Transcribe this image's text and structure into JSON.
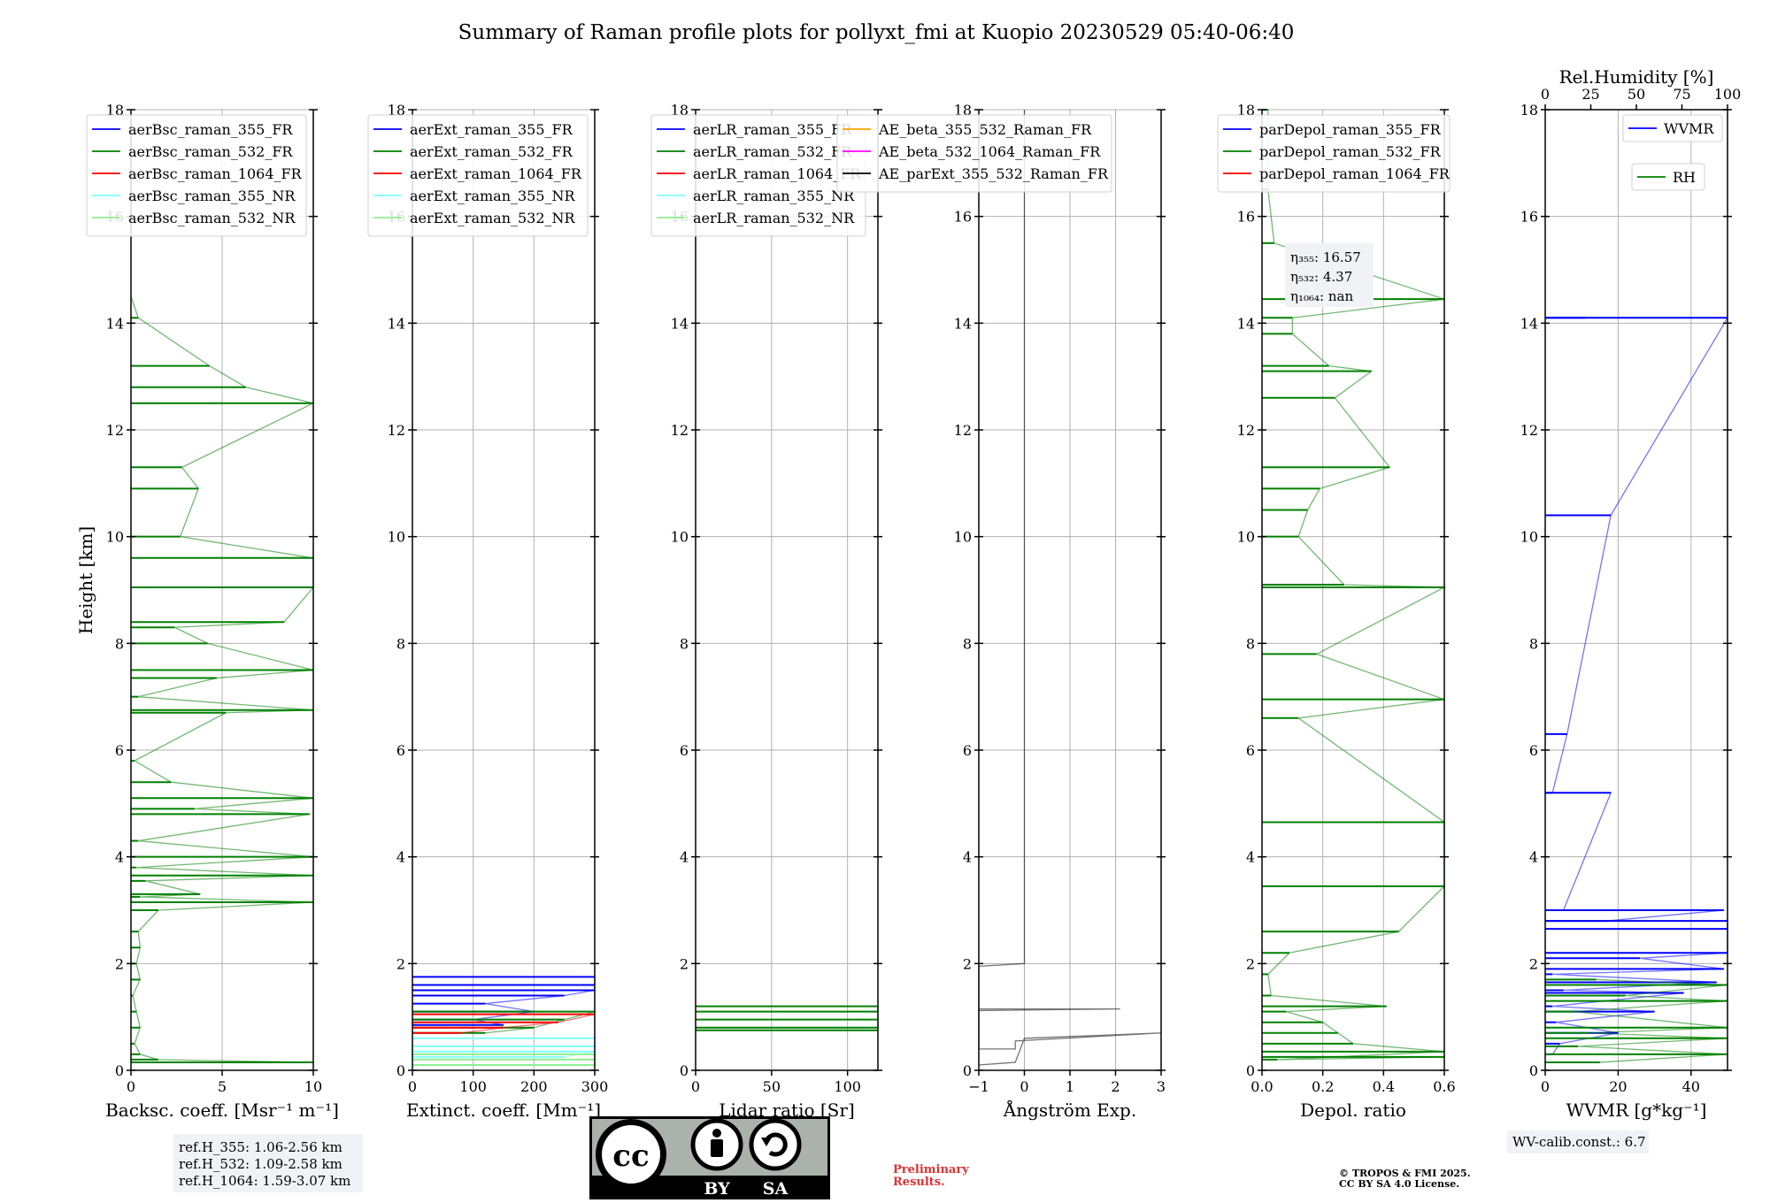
{
  "title": "Summary of Raman profile plots for pollyxt_fmi at Kuopio 20230529 05:40-06:40",
  "shared_ylabel": "Height [km]",
  "ref_box": [
    "ref.H_355: 1.06-2.56 km",
    "ref.H_532: 1.09-2.58 km",
    "ref.H_1064: 1.59-3.07 km"
  ],
  "eta_box": [
    "η₃₅₅: 16.57",
    "η₅₃₂: 4.37",
    "η₁₀₆₄: nan"
  ],
  "wv_box": "WV-calib.const.: 6.7",
  "license": {
    "badge_cc": "cc",
    "badge_by": "BY",
    "badge_sa": "SA",
    "preliminary": [
      "Preliminary",
      "Results."
    ],
    "copyright": [
      "© TROPOS & FMI 2025.",
      "CC BY SA 4.0 License."
    ]
  },
  "colors": {
    "blue": "#0000ff",
    "green": "#008000",
    "red": "#ff0000",
    "cyan": "#7fffff",
    "lightgreen": "#90ee90",
    "orange": "#ffa500",
    "magenta": "#ff00ff",
    "black": "#000000",
    "grid": "#b0b0b0"
  },
  "chart_data": [
    {
      "type": "line",
      "xlabel": "Backsc. coeff. [Msr⁻¹ m⁻¹]",
      "ylabel": "Height [km]",
      "xlim": [
        0,
        10
      ],
      "ylim": [
        0,
        18
      ],
      "xticks": [
        0,
        5,
        10
      ],
      "xtick_labels": [
        "0",
        "5",
        "10"
      ],
      "yticks": [
        0,
        2,
        4,
        6,
        8,
        10,
        12,
        14,
        16,
        18
      ],
      "grid": true,
      "legend": {
        "location": "upper-left",
        "entries": [
          {
            "name": "aerBsc_raman_355_FR",
            "color": "#0000ff"
          },
          {
            "name": "aerBsc_raman_532_FR",
            "color": "#008000"
          },
          {
            "name": "aerBsc_raman_1064_FR",
            "color": "#ff0000"
          },
          {
            "name": "aerBsc_raman_355_NR",
            "color": "#7fffff"
          },
          {
            "name": "aerBsc_raman_532_NR",
            "color": "#90ee90"
          }
        ]
      },
      "series": [
        {
          "name": "aerBsc_raman_532_FR",
          "color": "#008000",
          "values": [
            [
              10,
              0.15
            ],
            [
              1.5,
              0.2
            ],
            [
              0.5,
              0.3
            ],
            [
              0.2,
              0.5
            ],
            [
              0.5,
              0.8
            ],
            [
              0.3,
              1.1
            ],
            [
              0.1,
              1.4
            ],
            [
              0.5,
              1.7
            ],
            [
              0.3,
              2.0
            ],
            [
              0.5,
              2.3
            ],
            [
              0.4,
              2.6
            ],
            [
              1.5,
              3.0
            ],
            [
              10,
              3.15
            ],
            [
              0.5,
              3.25
            ],
            [
              3.8,
              3.3
            ],
            [
              0.8,
              3.55
            ],
            [
              10,
              3.65
            ],
            [
              0.3,
              3.8
            ],
            [
              10,
              4.0
            ],
            [
              0.4,
              4.3
            ],
            [
              9.8,
              4.8
            ],
            [
              3.5,
              4.9
            ],
            [
              10,
              5.1
            ],
            [
              2.2,
              5.4
            ],
            [
              0.2,
              5.8
            ],
            [
              5.2,
              6.7
            ],
            [
              10,
              6.75
            ],
            [
              0.4,
              7.0
            ],
            [
              4.7,
              7.35
            ],
            [
              10,
              7.5
            ],
            [
              4.2,
              8.0
            ],
            [
              2.4,
              8.3
            ],
            [
              8.4,
              8.4
            ],
            [
              10,
              9.05
            ],
            [
              10,
              9.6
            ],
            [
              2.7,
              10.0
            ],
            [
              3.7,
              10.9
            ],
            [
              2.8,
              11.3
            ],
            [
              10,
              12.5
            ],
            [
              6.3,
              12.8
            ],
            [
              4.3,
              13.2
            ],
            [
              0.4,
              14.1
            ],
            [
              0,
              14.5
            ]
          ]
        }
      ]
    },
    {
      "type": "line",
      "xlabel": "Extinct. coeff. [Mm⁻¹]",
      "xlim": [
        0,
        300
      ],
      "ylim": [
        0,
        18
      ],
      "xticks": [
        0,
        100,
        200,
        300
      ],
      "xtick_labels": [
        "0",
        "100",
        "200",
        "300"
      ],
      "yticks": [
        0,
        2,
        4,
        6,
        8,
        10,
        12,
        14,
        16,
        18
      ],
      "grid": true,
      "legend": {
        "location": "upper-left",
        "entries": [
          {
            "name": "aerExt_raman_355_FR",
            "color": "#0000ff"
          },
          {
            "name": "aerExt_raman_532_FR",
            "color": "#008000"
          },
          {
            "name": "aerExt_raman_1064_FR",
            "color": "#ff0000"
          },
          {
            "name": "aerExt_raman_355_NR",
            "color": "#7fffff"
          },
          {
            "name": "aerExt_raman_532_NR",
            "color": "#90ee90"
          }
        ]
      },
      "series": [
        {
          "name": "aerExt_raman_355_FR",
          "color": "#0000ff",
          "values": [
            [
              300,
              1.75
            ],
            [
              300,
              1.6
            ],
            [
              300,
              1.5
            ],
            [
              250,
              1.4
            ],
            [
              120,
              1.25
            ],
            [
              200,
              1.1
            ],
            [
              100,
              0.95
            ],
            [
              150,
              0.85
            ]
          ]
        },
        {
          "name": "aerExt_raman_532_FR",
          "color": "#008000",
          "values": [
            [
              300,
              1.1
            ],
            [
              250,
              0.95
            ],
            [
              200,
              0.8
            ],
            [
              120,
              0.7
            ]
          ]
        },
        {
          "name": "aerExt_raman_1064_FR",
          "color": "#ff0000",
          "values": [
            [
              300,
              1.05
            ],
            [
              240,
              0.9
            ],
            [
              150,
              0.8
            ],
            [
              80,
              0.7
            ]
          ]
        },
        {
          "name": "aerExt_raman_355_NR",
          "color": "#7fffff",
          "values": [
            [
              300,
              0.6
            ],
            [
              300,
              0.45
            ],
            [
              300,
              0.35
            ],
            [
              250,
              0.25
            ]
          ]
        },
        {
          "name": "aerExt_raman_532_NR",
          "color": "#90ee90",
          "values": [
            [
              300,
              0.3
            ],
            [
              300,
              0.2
            ],
            [
              300,
              0.1
            ]
          ]
        }
      ]
    },
    {
      "type": "line",
      "xlabel": "Lidar ratio [Sr]",
      "xlim": [
        0,
        120
      ],
      "ylim": [
        0,
        18
      ],
      "xticks": [
        0,
        50,
        100
      ],
      "xtick_labels": [
        "0",
        "50",
        "100"
      ],
      "yticks": [
        0,
        2,
        4,
        6,
        8,
        10,
        12,
        14,
        16,
        18
      ],
      "grid": true,
      "legend": {
        "location": "upper-left",
        "entries": [
          {
            "name": "aerLR_raman_355_FR",
            "color": "#0000ff"
          },
          {
            "name": "aerLR_raman_532_FR",
            "color": "#008000"
          },
          {
            "name": "aerLR_raman_1064_FR",
            "color": "#ff0000"
          },
          {
            "name": "aerLR_raman_355_NR",
            "color": "#7fffff"
          },
          {
            "name": "aerLR_raman_532_NR",
            "color": "#90ee90"
          }
        ]
      },
      "series": [
        {
          "name": "aerLR_raman_532_FR",
          "color": "#008000",
          "values": [
            [
              120,
              1.2
            ],
            [
              120,
              1.1
            ],
            [
              120,
              0.95
            ],
            [
              120,
              0.8
            ],
            [
              120,
              0.75
            ]
          ]
        }
      ]
    },
    {
      "type": "line",
      "xlabel": "Ångström Exp.",
      "xlim": [
        -1,
        3
      ],
      "ylim": [
        0,
        18
      ],
      "xticks": [
        -1,
        0,
        1,
        2,
        3
      ],
      "xtick_labels": [
        "−1",
        "0",
        "1",
        "2",
        "3"
      ],
      "yticks": [
        0,
        2,
        4,
        6,
        8,
        10,
        12,
        14,
        16,
        18
      ],
      "grid": true,
      "legend": {
        "location": "upper-center",
        "entries": [
          {
            "name": "AE_beta_355_532_Raman_FR",
            "color": "#ffa500"
          },
          {
            "name": "AE_beta_532_1064_Raman_FR",
            "color": "#ff00ff"
          },
          {
            "name": "AE_parExt_355_532_Raman_FR",
            "color": "#000000"
          }
        ]
      },
      "series": [
        {
          "name": "AE_parExt_355_532_Raman_FR",
          "color": "#000000",
          "values": [
            [
              0,
              18
            ],
            [
              0,
              2.0
            ],
            [
              -1,
              1.95
            ],
            [
              -1,
              1.15
            ],
            [
              2.1,
              1.15
            ],
            [
              -1,
              1.12
            ],
            [
              -1,
              0.4
            ],
            [
              -0.2,
              0.4
            ],
            [
              -0.2,
              0.55
            ],
            [
              3,
              0.7
            ],
            [
              0,
              0.6
            ],
            [
              -0.2,
              0.15
            ],
            [
              -1,
              0.1
            ]
          ]
        }
      ]
    },
    {
      "type": "line",
      "xlabel": "Depol. ratio",
      "xlim": [
        0,
        0.6
      ],
      "ylim": [
        0,
        18
      ],
      "xticks": [
        0,
        0.2,
        0.4,
        0.6
      ],
      "xtick_labels": [
        "0.0",
        "0.2",
        "0.4",
        "0.6"
      ],
      "yticks": [
        0,
        2,
        4,
        6,
        8,
        10,
        12,
        14,
        16,
        18
      ],
      "grid": true,
      "legend": {
        "location": "upper-left",
        "entries": [
          {
            "name": "parDepol_raman_355_FR",
            "color": "#0000ff"
          },
          {
            "name": "parDepol_raman_532_FR",
            "color": "#008000"
          },
          {
            "name": "parDepol_raman_1064_FR",
            "color": "#ff0000"
          }
        ]
      },
      "series": [
        {
          "name": "parDepol_raman_532_FR",
          "color": "#008000",
          "values": [
            [
              0.6,
              0.25
            ],
            [
              0.05,
              0.2
            ],
            [
              0.6,
              0.35
            ],
            [
              0.3,
              0.5
            ],
            [
              0.25,
              0.7
            ],
            [
              0.2,
              0.9
            ],
            [
              0.08,
              1.1
            ],
            [
              0.41,
              1.2
            ],
            [
              0.03,
              1.4
            ],
            [
              0.02,
              1.8
            ],
            [
              0.09,
              2.2
            ],
            [
              0.45,
              2.6
            ],
            [
              0.6,
              3.45
            ],
            [
              0.6,
              4.65
            ],
            [
              0.12,
              6.6
            ],
            [
              0.6,
              6.95
            ],
            [
              0.18,
              7.8
            ],
            [
              0.6,
              9.05
            ],
            [
              0.27,
              9.1
            ],
            [
              0.12,
              10.0
            ],
            [
              0.15,
              10.5
            ],
            [
              0.19,
              10.9
            ],
            [
              0.42,
              11.3
            ],
            [
              0.24,
              12.6
            ],
            [
              0.36,
              13.1
            ],
            [
              0.22,
              13.2
            ],
            [
              0.1,
              13.8
            ],
            [
              0.1,
              14.1
            ],
            [
              0.6,
              14.45
            ],
            [
              0.04,
              15.5
            ],
            [
              0.02,
              16.5
            ],
            [
              0.02,
              18
            ]
          ]
        }
      ]
    },
    {
      "type": "line",
      "xlabel": "WVMR [g*kg⁻¹]",
      "xlim": [
        0,
        50
      ],
      "ylim": [
        0,
        18
      ],
      "xticks": [
        0,
        20,
        40
      ],
      "xtick_labels": [
        "0",
        "20",
        "40"
      ],
      "yticks": [
        0,
        2,
        4,
        6,
        8,
        10,
        12,
        14,
        16,
        18
      ],
      "grid": true,
      "top_axis": {
        "label": "Rel.Humidity [%]",
        "lim": [
          0,
          100
        ],
        "ticks": [
          "0",
          "25",
          "50",
          "75",
          "100"
        ]
      },
      "legend": {
        "location": "upper-right",
        "entries": [
          {
            "name": "WVMR",
            "color": "#0000ff"
          },
          {
            "name": "RH",
            "color": "#008000"
          }
        ]
      },
      "series": [
        {
          "name": "WVMR",
          "color": "#0000ff",
          "values": [
            [
              11,
              14.1
            ],
            [
              50,
              14.1
            ],
            [
              18,
              10.4
            ],
            [
              6,
              6.3
            ],
            [
              2,
              5.2
            ],
            [
              18,
              5.2
            ],
            [
              5,
              3.0
            ],
            [
              49,
              3.0
            ],
            [
              17,
              2.8
            ],
            [
              50,
              2.8
            ],
            [
              50,
              2.65
            ],
            [
              50,
              2.2
            ],
            [
              26,
              2.1
            ],
            [
              49,
              1.9
            ],
            [
              2,
              1.8
            ],
            [
              47,
              1.65
            ],
            [
              5,
              1.5
            ],
            [
              38,
              1.45
            ],
            [
              2,
              1.2
            ],
            [
              30,
              1.1
            ],
            [
              3,
              0.9
            ],
            [
              20,
              0.7
            ],
            [
              4,
              0.5
            ],
            [
              2,
              0.3
            ]
          ]
        },
        {
          "name": "RH",
          "color": "#008000",
          "values": [
            [
              14,
              1.7
            ],
            [
              50,
              1.6
            ],
            [
              22,
              1.4
            ],
            [
              50,
              1.3
            ],
            [
              8,
              1.1
            ],
            [
              50,
              0.8
            ],
            [
              12,
              0.7
            ],
            [
              50,
              0.6
            ],
            [
              9,
              0.45
            ],
            [
              50,
              0.3
            ],
            [
              15,
              0.15
            ]
          ]
        }
      ]
    }
  ]
}
